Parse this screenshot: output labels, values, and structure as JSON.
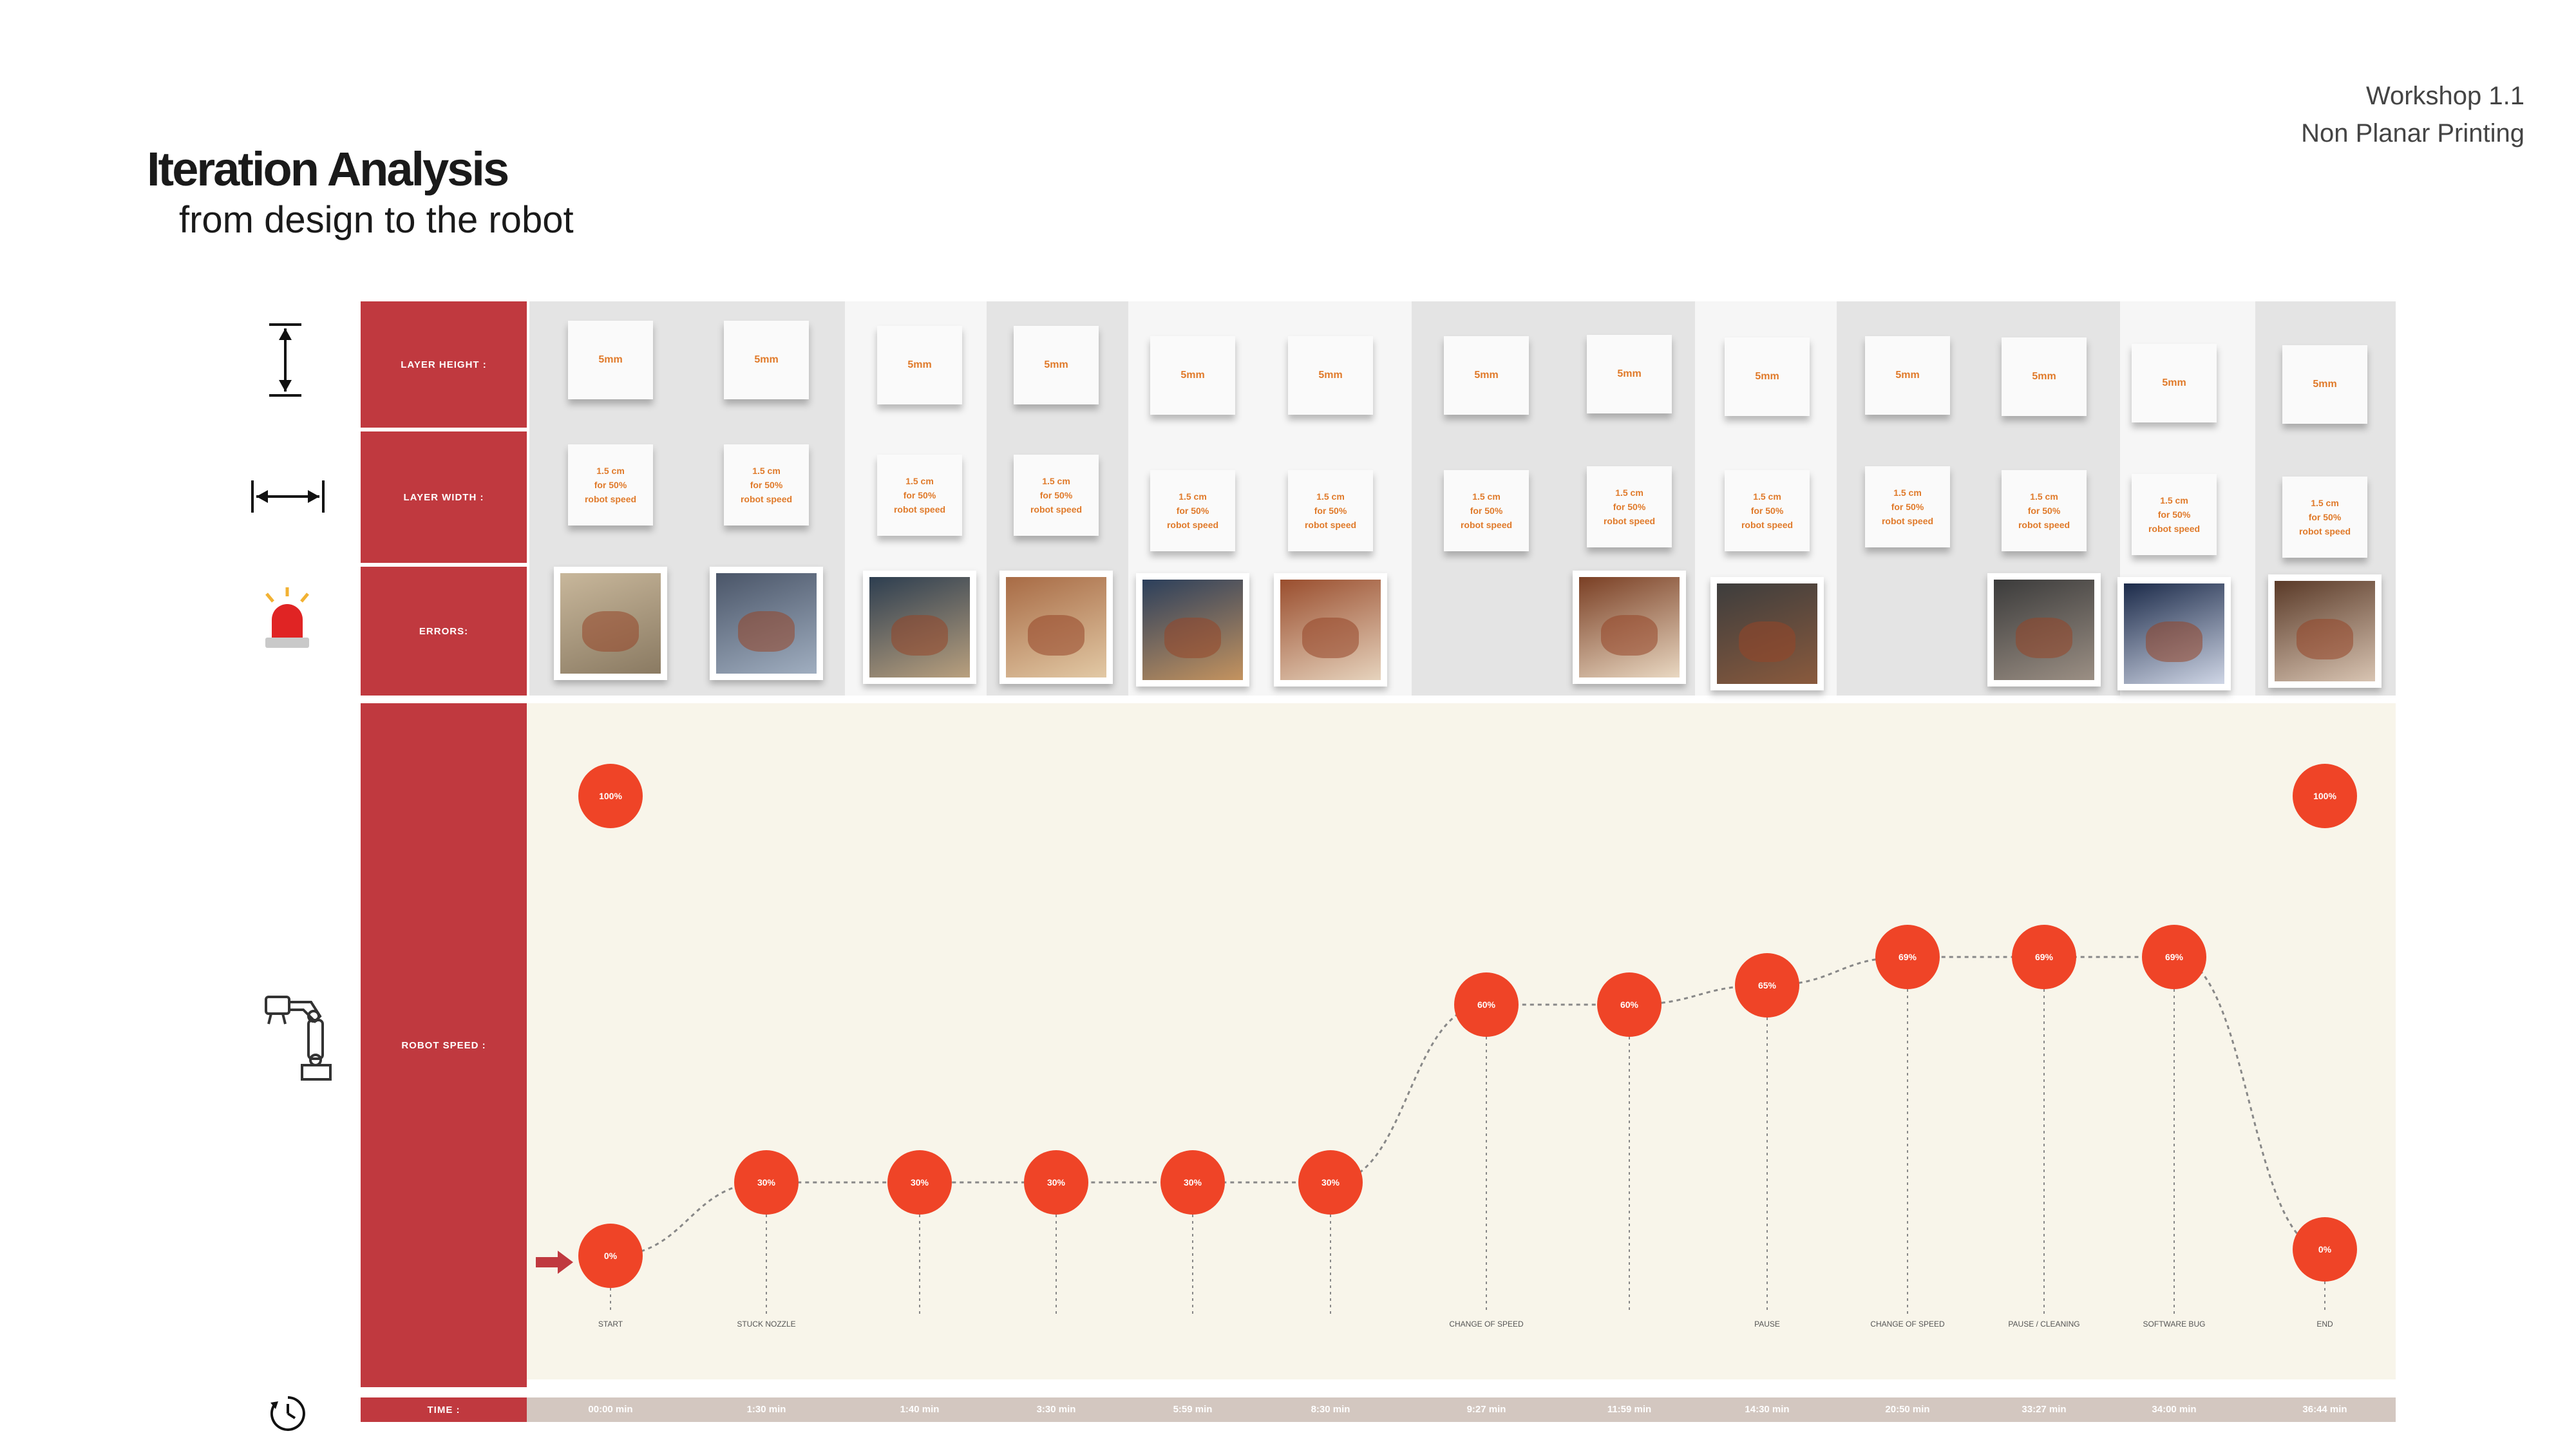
{
  "header": {
    "title": "Iteration Analysis",
    "subtitle": "from design to the robot",
    "workshop": "Workshop 1.1",
    "topic": "Non Planar Printing"
  },
  "rows": {
    "layer_height": "LAYER HEIGHT :",
    "layer_width": "LAYER WIDTH :",
    "errors": "ERRORS:",
    "robot_speed": "ROBOT SPEED :",
    "time": "TIME :"
  },
  "icons": {
    "height": "vertical-double-arrow-icon",
    "width": "horizontal-double-arrow-icon",
    "errors": "alarm-siren-icon",
    "speed": "robot-arm-icon",
    "time": "clock-icon"
  },
  "colors": {
    "label_red": "#c0393f",
    "node_red": "#ef4427",
    "note_text": "#e07a2a",
    "speed_bg": "#f8f5ea"
  },
  "iterations": [
    {
      "height": "5mm",
      "width_l1": "1.5 cm",
      "width_l2": "for 50%",
      "width_l3": "robot speed",
      "time": "00:00 min",
      "speed": "0%",
      "photo": true
    },
    {
      "height": "5mm",
      "width_l1": "1.5 cm",
      "width_l2": "for 50%",
      "width_l3": "robot speed",
      "time": "1:30 min",
      "speed": "30%",
      "photo": true
    },
    {
      "height": "5mm",
      "width_l1": "1.5 cm",
      "width_l2": "for 50%",
      "width_l3": "robot speed",
      "time": "1:40 min",
      "speed": "30%",
      "photo": true
    },
    {
      "height": "5mm",
      "width_l1": "1.5 cm",
      "width_l2": "for 50%",
      "width_l3": "robot speed",
      "time": "3:30 min",
      "speed": "30%",
      "photo": true
    },
    {
      "height": "5mm",
      "width_l1": "1.5 cm",
      "width_l2": "for 50%",
      "width_l3": "robot speed",
      "time": "5:59 min",
      "speed": "30%",
      "photo": true
    },
    {
      "height": "5mm",
      "width_l1": "1.5 cm",
      "width_l2": "for 50%",
      "width_l3": "robot speed",
      "time": "8:30 min",
      "speed": "30%",
      "photo": true
    },
    {
      "height": "5mm",
      "width_l1": "1.5 cm",
      "width_l2": "for 50%",
      "width_l3": "robot speed",
      "time": "9:27 min",
      "speed": "60%",
      "photo": false
    },
    {
      "height": "5mm",
      "width_l1": "1.5 cm",
      "width_l2": "for 50%",
      "width_l3": "robot speed",
      "time": "11:59 min",
      "speed": "60%",
      "photo": true
    },
    {
      "height": "5mm",
      "width_l1": "1.5 cm",
      "width_l2": "for 50%",
      "width_l3": "robot speed",
      "time": "14:30 min",
      "speed": "65%",
      "photo": true
    },
    {
      "height": "5mm",
      "width_l1": "1.5 cm",
      "width_l2": "for 50%",
      "width_l3": "robot speed",
      "time": "20:50 min",
      "speed": "69%",
      "photo": false
    },
    {
      "height": "5mm",
      "width_l1": "1.5 cm",
      "width_l2": "for 50%",
      "width_l3": "robot speed",
      "time": "33:27 min",
      "speed": "69%",
      "photo": true
    },
    {
      "height": "5mm",
      "width_l1": "1.5 cm",
      "width_l2": "for 50%",
      "width_l3": "robot speed",
      "time": "34:00 min",
      "speed": "69%",
      "photo": true
    },
    {
      "height": "5mm",
      "width_l1": "1.5 cm",
      "width_l2": "for 50%",
      "width_l3": "robot speed",
      "time": "36:44 min",
      "speed": "0%",
      "photo": true
    }
  ],
  "max_speed_markers": [
    "100%",
    "100%"
  ],
  "events": [
    "START",
    "STUCK NOZZLE",
    "",
    "",
    "",
    "",
    "CHANGE OF SPEED",
    "",
    "PAUSE",
    "CHANGE OF SPEED",
    "PAUSE / CLEANING",
    "SOFTWARE BUG",
    "END"
  ]
}
